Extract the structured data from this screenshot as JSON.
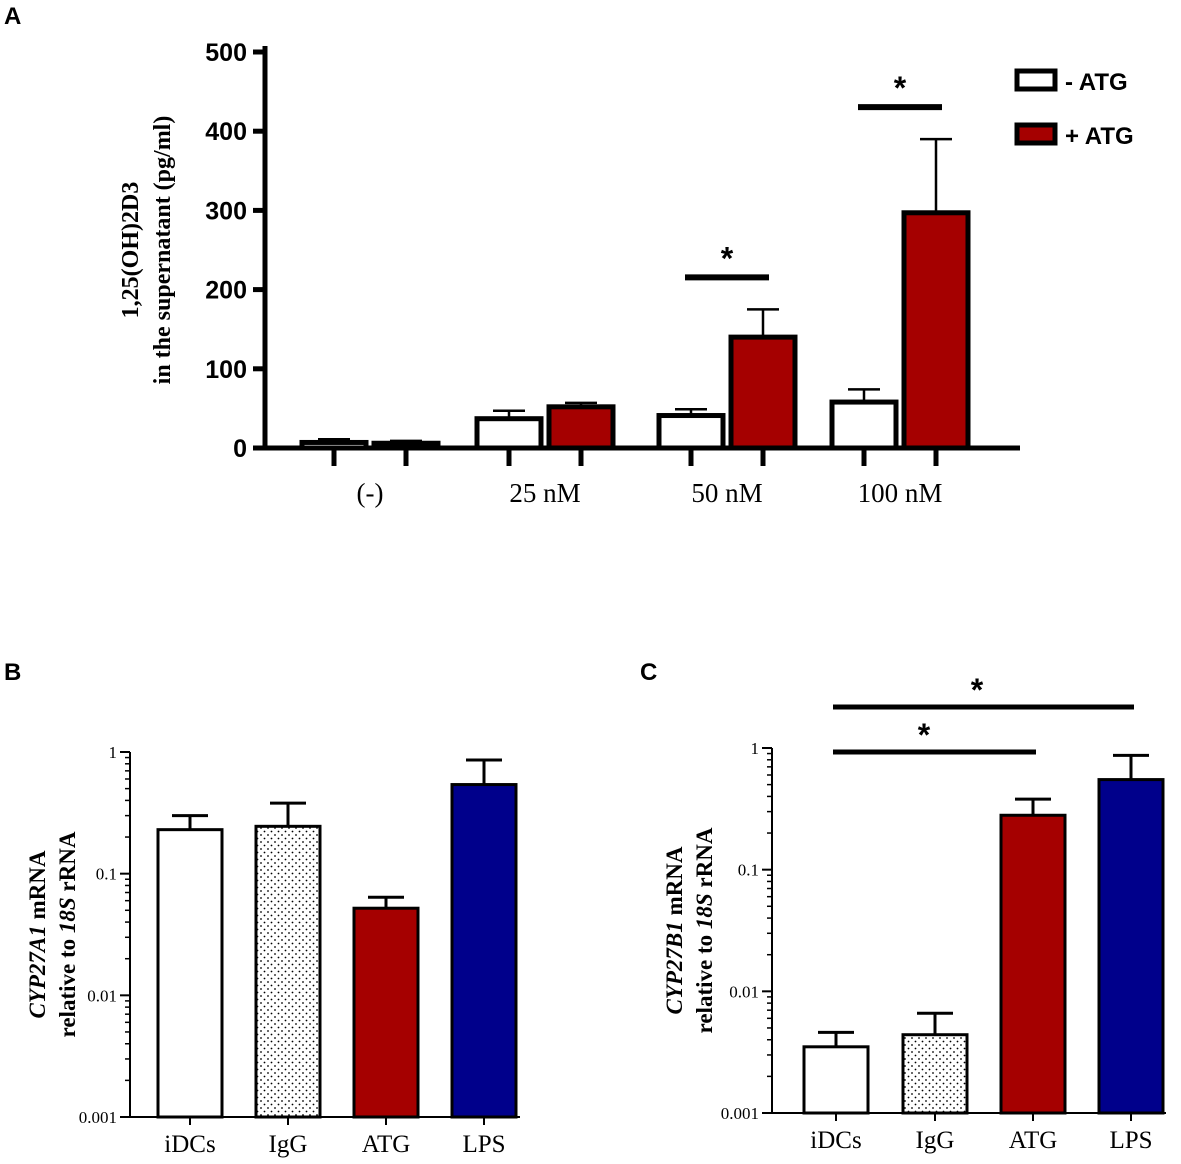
{
  "colors": {
    "minus_atg": "#ffffff",
    "plus_atg": "#a50000",
    "lps": "#00008b",
    "axis": "#000000"
  },
  "chart_data": [
    {
      "panel": "A",
      "type": "bar",
      "ylabel_line1": "1,25(OH)2D3",
      "ylabel_line2": "in the supernatant (pg/ml)",
      "ylim": [
        0,
        500
      ],
      "yticks": [
        "0",
        "100",
        "200",
        "300",
        "400",
        "500"
      ],
      "categories": [
        "(-)",
        "25 nM",
        "50 nM",
        "100 nM"
      ],
      "legend": [
        "- ATG",
        "+ ATG"
      ],
      "legend_position": "top-right",
      "series": [
        {
          "name": "- ATG",
          "values": [
            7,
            37,
            41,
            58
          ],
          "errors": [
            4,
            10,
            8,
            16
          ]
        },
        {
          "name": "+ ATG",
          "values": [
            6,
            52,
            140,
            297
          ],
          "errors": [
            3,
            5,
            35,
            93
          ]
        }
      ],
      "significance": [
        {
          "category": "50 nM",
          "label": "*"
        },
        {
          "category": "100 nM",
          "label": "*"
        }
      ]
    },
    {
      "panel": "B",
      "type": "bar",
      "yscale": "log",
      "ylabel_line1_italic": "CYP27A1",
      "ylabel_line1_rest": " mRNA",
      "ylabel_line2_prefix": "relative to ",
      "ylabel_line2_italic": "18S",
      "ylabel_line2_suffix": " rRNA",
      "ylim": [
        0.001,
        1
      ],
      "yticks": [
        "0.001",
        "0.01",
        "0.1",
        "1"
      ],
      "categories": [
        "iDCs",
        "IgG",
        "ATG",
        "LPS"
      ],
      "values": [
        0.23,
        0.245,
        0.052,
        0.54
      ],
      "errors_upper": [
        0.3,
        0.38,
        0.064,
        0.86
      ],
      "significance": []
    },
    {
      "panel": "C",
      "type": "bar",
      "yscale": "log",
      "ylabel_line1_italic": "CYP27B1",
      "ylabel_line1_rest": " mRNA",
      "ylabel_line2_prefix": "relative to ",
      "ylabel_line2_italic": "18S",
      "ylabel_line2_suffix": " rRNA",
      "ylim": [
        0.001,
        1
      ],
      "yticks": [
        "0.001",
        "0.01",
        "0.1",
        "1"
      ],
      "categories": [
        "iDCs",
        "IgG",
        "ATG",
        "LPS"
      ],
      "values": [
        0.0035,
        0.0044,
        0.28,
        0.55
      ],
      "errors_upper": [
        0.0046,
        0.0066,
        0.38,
        0.87
      ],
      "significance": [
        {
          "from": "iDCs",
          "to": "ATG",
          "label": "*"
        },
        {
          "from": "iDCs",
          "to": "LPS",
          "label": "*"
        }
      ]
    }
  ]
}
